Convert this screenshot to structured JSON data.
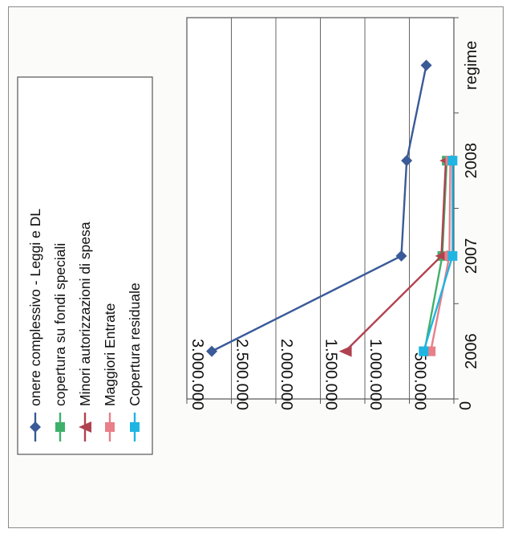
{
  "chart_data": {
    "type": "line",
    "orientation": "rotated-90-clockwise",
    "categories": [
      "2006",
      "2007",
      "2008",
      "regime"
    ],
    "ylim": [
      0,
      3000000
    ],
    "yticks": [
      "0",
      "500.000",
      "1.000.000",
      "1.500.000",
      "2.000.000",
      "2.500.000",
      "3.000.000"
    ],
    "grid": true,
    "legend_position": "left",
    "series": [
      {
        "name": "onere complessivo - Leggi e DL",
        "color": "#3a5a98",
        "marker": "diamond",
        "values": [
          2720000,
          590000,
          530000,
          310000
        ]
      },
      {
        "name": "copertura su fondi speciali",
        "color": "#3fb06a",
        "marker": "square",
        "values": [
          330000,
          130000,
          80000,
          null
        ]
      },
      {
        "name": "Minori autorizzazioni di spesa",
        "color": "#b0424f",
        "marker": "triangle",
        "values": [
          1220000,
          140000,
          90000,
          null
        ]
      },
      {
        "name": "Maggiori Entrate",
        "color": "#e97f88",
        "marker": "square",
        "values": [
          260000,
          50000,
          40000,
          null
        ]
      },
      {
        "name": "Copertura residuale",
        "color": "#1fb5e3",
        "marker": "square",
        "values": [
          340000,
          15000,
          15000,
          null
        ]
      }
    ]
  }
}
